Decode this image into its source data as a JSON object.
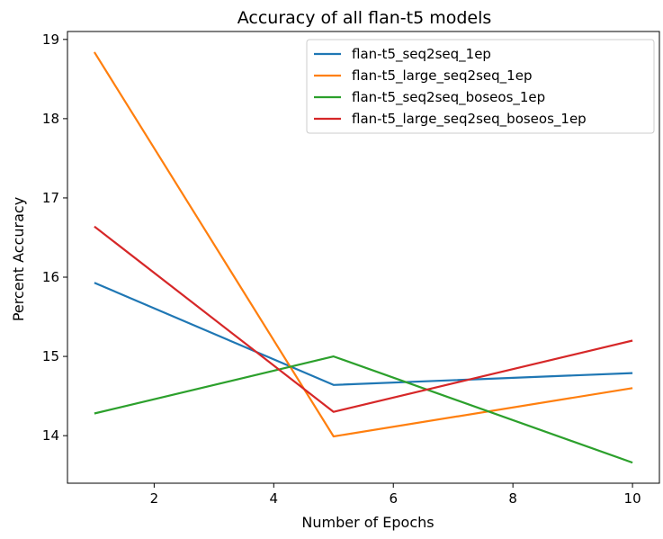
{
  "chart_data": {
    "type": "line",
    "title": "Accuracy of all flan-t5 models",
    "xlabel": "Number of Epochs",
    "ylabel": "Percent Accuracy",
    "x": [
      1,
      5,
      10
    ],
    "xlim": [
      0.55,
      10.45
    ],
    "ylim": [
      13.4,
      19.1
    ],
    "xticks": [
      2,
      4,
      6,
      8,
      10
    ],
    "yticks": [
      14,
      15,
      16,
      17,
      18,
      19
    ],
    "grid": false,
    "legend_position": "top-right",
    "series": [
      {
        "name": "flan-t5_seq2seq_1ep",
        "color": "#1f77b4",
        "values": [
          15.93,
          14.64,
          14.79
        ]
      },
      {
        "name": "flan-t5_large_seq2seq_1ep",
        "color": "#ff7f0e",
        "values": [
          18.84,
          13.99,
          14.6
        ]
      },
      {
        "name": "flan-t5_seq2seq_boseos_1ep",
        "color": "#2ca02c",
        "values": [
          14.28,
          15.0,
          13.66
        ]
      },
      {
        "name": "flan-t5_large_seq2seq_boseos_1ep",
        "color": "#d62728",
        "values": [
          16.64,
          14.3,
          15.2
        ]
      }
    ]
  }
}
